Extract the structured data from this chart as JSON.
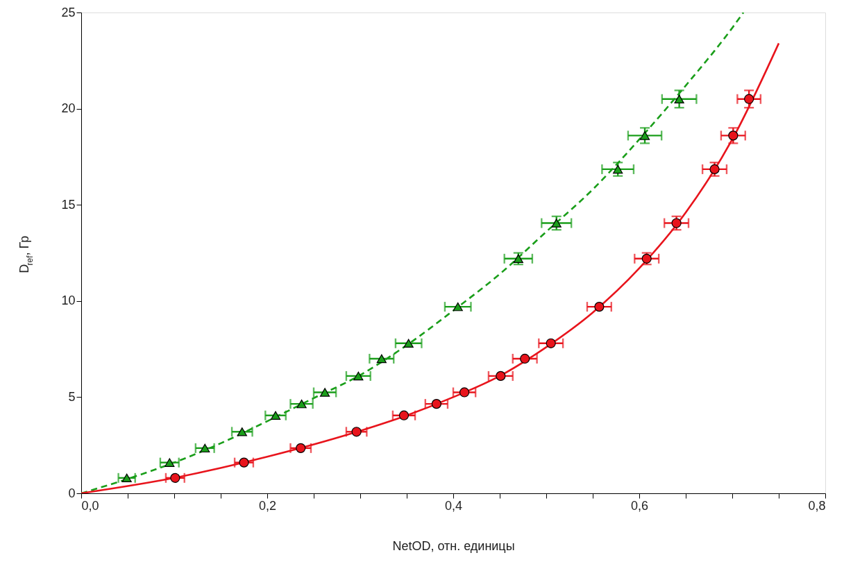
{
  "chart_data": {
    "type": "scatter",
    "xlabel": "NetOD, отн. единицы",
    "ylabel": "D$_{ref}$, Гр",
    "xlim": [
      0,
      0.8
    ],
    "ylim": [
      0,
      25
    ],
    "xticks": [
      {
        "value": 0,
        "label": "0,0"
      },
      {
        "value": 0.05,
        "label": null
      },
      {
        "value": 0.1,
        "label": null
      },
      {
        "value": 0.15,
        "label": null
      },
      {
        "value": 0.2,
        "label": "0,2"
      },
      {
        "value": 0.25,
        "label": null
      },
      {
        "value": 0.3,
        "label": null
      },
      {
        "value": 0.35,
        "label": null
      },
      {
        "value": 0.4,
        "label": "0,4"
      },
      {
        "value": 0.45,
        "label": null
      },
      {
        "value": 0.5,
        "label": null
      },
      {
        "value": 0.55,
        "label": null
      },
      {
        "value": 0.6,
        "label": "0,6"
      },
      {
        "value": 0.65,
        "label": null
      },
      {
        "value": 0.7,
        "label": null
      },
      {
        "value": 0.75,
        "label": null
      },
      {
        "value": 0.8,
        "label": "0,8"
      }
    ],
    "yticks": [
      0,
      5,
      10,
      15,
      20,
      25
    ],
    "grid": false,
    "series": [
      {
        "type": "line",
        "color": "#1a9e1a",
        "line_style": "dashed",
        "marker": "none",
        "x": [
          0,
          0.05,
          0.1,
          0.15,
          0.2,
          0.25,
          0.3,
          0.35,
          0.4,
          0.45,
          0.5,
          0.55,
          0.6,
          0.65,
          0.7,
          0.712
        ],
        "values": [
          0,
          0.75,
          1.6,
          2.6,
          3.75,
          4.95,
          6.15,
          7.7,
          9.5,
          11.4,
          13.6,
          15.8,
          18.4,
          21.2,
          24.2,
          25
        ]
      },
      {
        "type": "line",
        "color": "#e8141c",
        "line_style": "solid",
        "marker": "none",
        "x": [
          0,
          0.1,
          0.2,
          0.3,
          0.35,
          0.4,
          0.45,
          0.5,
          0.55,
          0.6,
          0.65,
          0.7,
          0.75
        ],
        "values": [
          0,
          0.8,
          1.9,
          3.25,
          4.05,
          5.0,
          6.1,
          7.6,
          9.4,
          11.7,
          14.6,
          18.4,
          23.4
        ]
      },
      {
        "color": "#1a9e1a",
        "marker": "triangle",
        "x": [
          0.049,
          0.095,
          0.133,
          0.173,
          0.209,
          0.237,
          0.262,
          0.298,
          0.323,
          0.352,
          0.405,
          0.47,
          0.511,
          0.577,
          0.606,
          0.643
        ],
        "values": [
          0.8,
          1.6,
          2.35,
          3.2,
          4.05,
          4.65,
          5.25,
          6.1,
          7.0,
          7.8,
          9.7,
          12.2,
          14.05,
          16.85,
          18.6,
          20.5
        ],
        "xerrors": [
          0.009,
          0.01,
          0.01,
          0.011,
          0.011,
          0.012,
          0.012,
          0.013,
          0.013,
          0.014,
          0.014,
          0.015,
          0.016,
          0.017,
          0.018,
          0.0185
        ],
        "errors": [
          null,
          null,
          null,
          null,
          null,
          null,
          null,
          null,
          null,
          null,
          null,
          0.3,
          0.35,
          0.35,
          0.4,
          0.45
        ]
      },
      {
        "color": "#e8141c",
        "marker": "circle",
        "x": [
          0.101,
          0.175,
          0.236,
          0.296,
          0.347,
          0.382,
          0.412,
          0.451,
          0.477,
          0.505,
          0.557,
          0.608,
          0.64,
          0.681,
          0.701,
          0.718
        ],
        "values": [
          0.8,
          1.6,
          2.35,
          3.2,
          4.05,
          4.65,
          5.25,
          6.1,
          7.0,
          7.8,
          9.7,
          12.2,
          14.05,
          16.85,
          18.6,
          20.5
        ],
        "xerrors": [
          0.01,
          0.01,
          0.011,
          0.011,
          0.012,
          0.012,
          0.012,
          0.013,
          0.013,
          0.013,
          0.013,
          0.013,
          0.013,
          0.013,
          0.013,
          0.0125
        ],
        "errors": [
          null,
          null,
          null,
          null,
          null,
          null,
          null,
          null,
          null,
          null,
          null,
          0.3,
          0.35,
          0.35,
          0.4,
          0.45
        ]
      }
    ]
  }
}
